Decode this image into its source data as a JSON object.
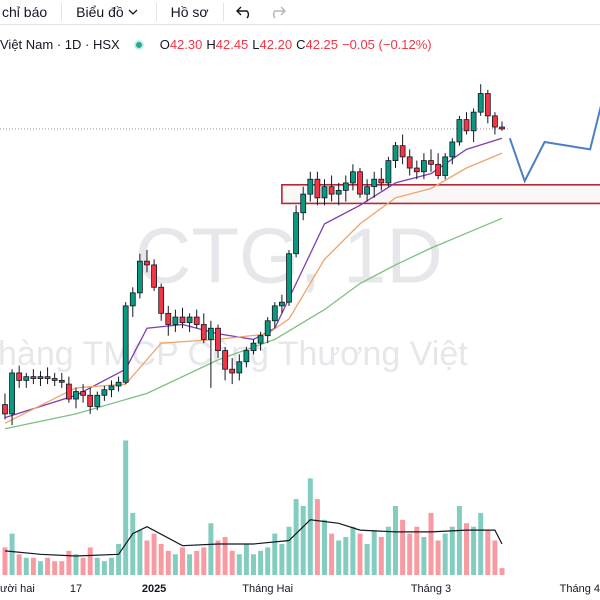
{
  "toolbar": {
    "items": [
      "chỉ báo",
      "Biểu đồ",
      "Hồ sơ"
    ]
  },
  "legend": {
    "symbol": "Việt Nam · 1D · HSX",
    "ohlc": [
      {
        "key": "O",
        "text": "42.30"
      },
      {
        "key": "H",
        "text": "42.45"
      },
      {
        "key": "L",
        "text": "42.20"
      },
      {
        "key": "C",
        "text": "42.25"
      }
    ],
    "change": "−0.05 (−0.12%)"
  },
  "watermark": {
    "ticker": "CTG, 1D",
    "name": "hàng TMCP Công Thương Việt"
  },
  "chart_data": {
    "type": "candlestick",
    "xlim": [
      -0.7,
      83.8
    ],
    "xticks": [
      {
        "value": 0,
        "label": "ười hai"
      },
      {
        "value": 10,
        "label": "17"
      },
      {
        "value": 21,
        "label": "2025"
      },
      {
        "value": 37,
        "label": "Tháng Hai"
      },
      {
        "value": 60,
        "label": "Tháng 3"
      },
      {
        "value": 81,
        "label": "Tháng 4"
      }
    ],
    "ylim": [
      33.9,
      44.1
    ],
    "vlim": [
      0,
      40
    ],
    "up_color": "#089981",
    "down_color": "#f23645",
    "open": [
      34.85,
      34.6,
      35.7,
      35.5,
      35.6,
      35.55,
      35.6,
      35.55,
      35.5,
      35.4,
      35.0,
      35.2,
      35.1,
      34.8,
      35.1,
      35.25,
      35.35,
      35.45,
      37.5,
      37.85,
      38.7,
      38.6,
      38.0,
      37.3,
      37.0,
      37.2,
      37.05,
      37.2,
      37.0,
      36.6,
      36.9,
      36.3,
      35.8,
      35.7,
      36.0,
      36.3,
      36.5,
      36.7,
      37.1,
      37.5,
      37.6,
      38.9,
      40.0,
      40.5,
      40.9,
      40.4,
      40.7,
      40.5,
      40.6,
      40.8,
      41.1,
      40.5,
      40.7,
      40.9,
      40.8,
      41.4,
      41.8,
      41.5,
      41.2,
      41.1,
      41.4,
      41.3,
      41.0,
      41.5,
      41.9,
      42.5,
      42.2,
      42.7,
      43.2,
      42.6,
      42.3
    ],
    "high": [
      35.15,
      35.8,
      35.9,
      35.7,
      35.8,
      35.75,
      35.85,
      35.7,
      35.7,
      35.6,
      35.3,
      35.4,
      35.3,
      35.2,
      35.35,
      35.5,
      35.6,
      37.6,
      38.0,
      38.9,
      39.0,
      38.75,
      38.1,
      37.5,
      37.4,
      37.45,
      37.3,
      37.4,
      37.3,
      37.1,
      37.0,
      36.4,
      36.1,
      36.2,
      36.4,
      36.6,
      36.8,
      37.2,
      37.6,
      37.8,
      39.0,
      40.2,
      40.7,
      41.1,
      41.1,
      40.9,
      41.0,
      40.8,
      41.0,
      41.3,
      41.2,
      40.9,
      41.1,
      41.2,
      41.5,
      41.9,
      42.1,
      41.7,
      41.4,
      41.6,
      41.7,
      41.6,
      41.6,
      42.0,
      42.6,
      42.7,
      42.8,
      43.45,
      43.3,
      42.7,
      42.45
    ],
    "low": [
      34.45,
      34.3,
      35.3,
      35.3,
      35.4,
      35.35,
      35.4,
      35.35,
      35.3,
      34.9,
      34.75,
      34.9,
      34.6,
      34.7,
      34.95,
      35.05,
      35.2,
      35.4,
      37.2,
      37.7,
      38.4,
      37.9,
      37.1,
      36.7,
      36.8,
      36.9,
      36.8,
      36.9,
      36.5,
      35.3,
      36.1,
      35.5,
      35.4,
      35.5,
      35.85,
      36.2,
      36.3,
      36.5,
      36.9,
      37.3,
      37.5,
      38.8,
      39.8,
      40.3,
      40.2,
      40.2,
      40.3,
      40.2,
      40.3,
      40.6,
      40.4,
      40.3,
      40.4,
      40.6,
      40.7,
      41.2,
      41.3,
      41.0,
      40.9,
      40.9,
      41.1,
      40.9,
      40.9,
      41.3,
      41.8,
      42.1,
      41.9,
      42.6,
      42.4,
      42.1,
      42.2
    ],
    "close": [
      34.6,
      35.7,
      35.5,
      35.6,
      35.55,
      35.6,
      35.55,
      35.5,
      35.45,
      35.0,
      35.2,
      35.1,
      34.8,
      35.1,
      35.25,
      35.35,
      35.45,
      37.5,
      37.85,
      38.7,
      38.6,
      38.0,
      37.3,
      37.0,
      37.2,
      37.05,
      37.2,
      37.0,
      36.6,
      36.9,
      36.3,
      35.8,
      35.7,
      36.0,
      36.3,
      36.5,
      36.7,
      37.1,
      37.5,
      37.6,
      38.9,
      40.0,
      40.5,
      40.9,
      40.4,
      40.7,
      40.5,
      40.6,
      40.8,
      41.1,
      40.5,
      40.7,
      40.9,
      40.8,
      41.4,
      41.8,
      41.5,
      41.2,
      41.1,
      41.4,
      41.3,
      41.0,
      41.5,
      41.9,
      42.5,
      42.2,
      42.7,
      43.2,
      42.6,
      42.3,
      42.25
    ],
    "volume": [
      8,
      12,
      6,
      5,
      5,
      4,
      5,
      4,
      4,
      7,
      6,
      5,
      8,
      5,
      4,
      5,
      9,
      39,
      18,
      13,
      10,
      12,
      9,
      7,
      6,
      8,
      6,
      7,
      8,
      15,
      10,
      11,
      7,
      6,
      9,
      6,
      7,
      8,
      12,
      9,
      14,
      22,
      20,
      28,
      22,
      16,
      12,
      10,
      11,
      14,
      12,
      9,
      13,
      11,
      14,
      20,
      16,
      12,
      14,
      11,
      18,
      10,
      12,
      14,
      20,
      15,
      14,
      18,
      13,
      10,
      2
    ],
    "moving_averages": [
      {
        "color": "#7b3fb5",
        "x": [
          0,
          10,
          17,
          20,
          25,
          30,
          35,
          38,
          40,
          45,
          50,
          55,
          60,
          65,
          70
        ],
        "values": [
          34.5,
          35.1,
          35.8,
          36.9,
          37.0,
          36.75,
          36.6,
          36.9,
          37.7,
          39.7,
          40.2,
          40.8,
          41.05,
          41.7,
          42.0
        ]
      },
      {
        "color": "#f0a36b",
        "x": [
          0,
          10,
          17,
          22,
          30,
          37,
          40,
          45,
          50,
          55,
          60,
          65,
          70
        ],
        "values": [
          34.35,
          35.3,
          35.4,
          36.5,
          36.6,
          36.75,
          37.15,
          38.75,
          39.7,
          40.4,
          40.65,
          41.2,
          41.6
        ]
      },
      {
        "color": "#7fbf7f",
        "x": [
          0,
          10,
          20,
          30,
          38,
          45,
          50,
          55,
          60,
          65,
          70
        ],
        "values": [
          34.2,
          34.6,
          35.15,
          36.05,
          36.6,
          37.4,
          38.1,
          38.6,
          39.05,
          39.45,
          39.85
        ]
      }
    ],
    "volume_ma": {
      "color": "#131722",
      "x": [
        0,
        5,
        10,
        16,
        18,
        20,
        25,
        30,
        35,
        40,
        43,
        47,
        50,
        55,
        60,
        65,
        69,
        70
      ],
      "values": [
        7,
        6,
        5.5,
        6,
        12,
        14,
        8.5,
        9,
        9,
        10,
        16,
        15,
        13,
        12.5,
        12.5,
        13,
        13,
        9
      ]
    },
    "zone": {
      "top": 40.75,
      "bottom": 40.25,
      "x_start": 39,
      "color": "#b22833"
    },
    "projection": {
      "color": "#4a7fc1",
      "x": [
        71.1,
        73.2,
        76,
        82.4,
        84.5
      ],
      "values": [
        42.0,
        40.85,
        41.9,
        41.7,
        43.3
      ]
    }
  }
}
